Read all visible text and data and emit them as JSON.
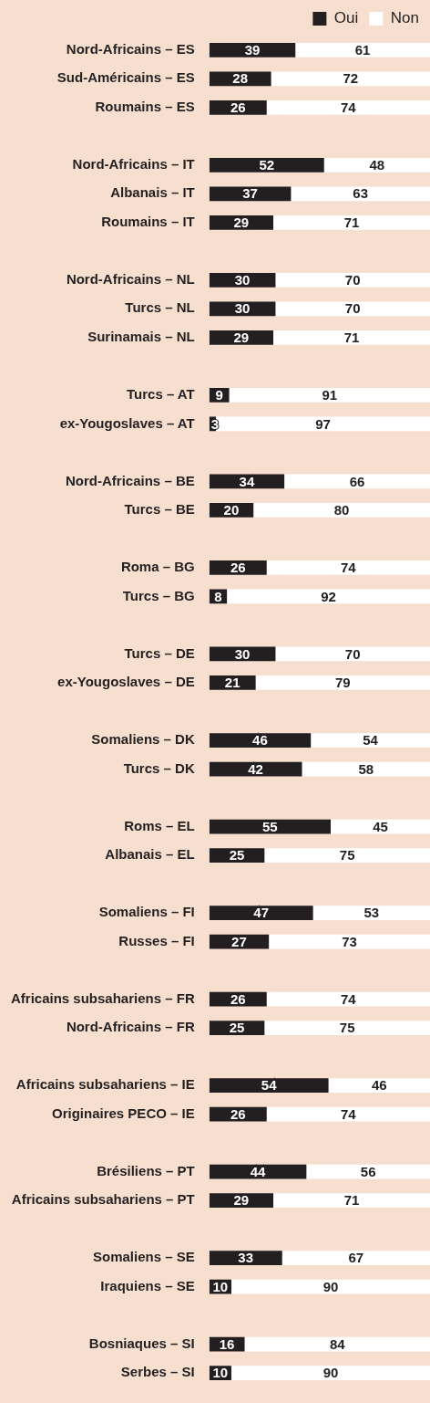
{
  "chart_data": {
    "type": "bar",
    "orientation": "horizontal",
    "stacked": true,
    "data_labels": true,
    "grid": false,
    "legend": "top right",
    "tick_labels": "y",
    "categories": [
      "Nord-Africains – ES",
      "Sud-Américains – ES",
      "Roumains – ES",
      null,
      "Nord-Africains – IT",
      "Albanais – IT",
      "Roumains – IT",
      null,
      "Nord-Africains – NL",
      "Turcs – NL",
      "Surinamais – NL",
      null,
      "Turcs – AT",
      "ex-Yougoslaves – AT",
      null,
      "Nord-Africains – BE",
      "Turcs – BE",
      null,
      "Roma – BG",
      "Turcs – BG",
      null,
      "Turcs – DE",
      "ex-Yougoslaves – DE",
      null,
      "Somaliens – DK",
      "Turcs – DK",
      null,
      "Roms – EL",
      "Albanais – EL",
      null,
      "Somaliens – FI",
      "Russes – FI",
      null,
      "Africains subsahariens – FR",
      "Nord-Africains – FR",
      null,
      "Africains subsahariens – IE",
      "Originaires PECO – IE",
      null,
      "Brésiliens – PT",
      "Africains subsahariens – PT",
      null,
      "Somaliens – SE",
      "Iraquiens – SE",
      null,
      "Bosniaques – SI",
      "Serbes – SI"
    ],
    "series": [
      {
        "name": "Oui",
        "color": "#231f20",
        "values": [
          39,
          28,
          26,
          null,
          52,
          37,
          29,
          null,
          30,
          30,
          29,
          null,
          9,
          3,
          null,
          34,
          20,
          null,
          26,
          8,
          null,
          30,
          21,
          null,
          46,
          42,
          null,
          55,
          25,
          null,
          47,
          27,
          null,
          26,
          25,
          null,
          54,
          26,
          null,
          44,
          29,
          null,
          33,
          10,
          null,
          16,
          10
        ]
      },
      {
        "name": "Non",
        "color": "#ffffff",
        "values": [
          61,
          72,
          74,
          null,
          48,
          63,
          71,
          null,
          70,
          70,
          71,
          null,
          91,
          97,
          null,
          66,
          80,
          null,
          74,
          92,
          null,
          70,
          79,
          null,
          54,
          58,
          null,
          45,
          75,
          null,
          53,
          73,
          null,
          74,
          75,
          null,
          46,
          74,
          null,
          56,
          71,
          null,
          67,
          90,
          null,
          84,
          90
        ]
      }
    ]
  }
}
